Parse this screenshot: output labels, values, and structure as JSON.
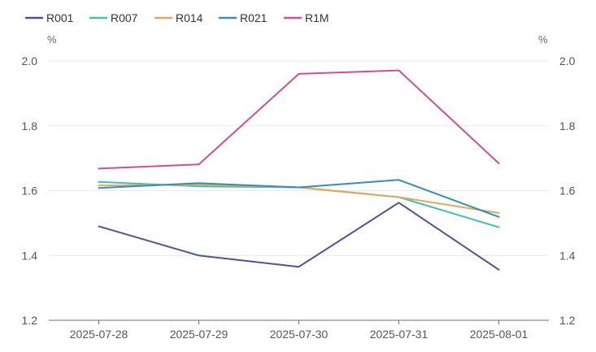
{
  "chart_data": {
    "type": "line",
    "categories": [
      "2025-07-28",
      "2025-07-29",
      "2025-07-30",
      "2025-07-31",
      "2025-08-01"
    ],
    "series": [
      {
        "name": "R001",
        "color": "#4a5591",
        "values": [
          1.49,
          1.4,
          1.365,
          1.563,
          1.356
        ]
      },
      {
        "name": "R007",
        "color": "#3fbfb6",
        "values": [
          1.627,
          1.613,
          1.61,
          1.58,
          1.487
        ]
      },
      {
        "name": "R014",
        "color": "#e0a860",
        "values": [
          1.616,
          1.618,
          1.61,
          1.58,
          1.531
        ]
      },
      {
        "name": "R021",
        "color": "#3a8bb5",
        "values": [
          1.608,
          1.623,
          1.61,
          1.633,
          1.519
        ]
      },
      {
        "name": "R1M",
        "color": "#cc4f9e",
        "values": [
          1.668,
          1.681,
          1.96,
          1.971,
          1.684
        ]
      }
    ],
    "left_axis": {
      "unit": "%",
      "ticks": [
        "2.0",
        "1.8",
        "1.6",
        "1.4",
        "1.2"
      ]
    },
    "right_axis": {
      "unit": "%",
      "ticks": [
        "2.0",
        "1.8",
        "1.6",
        "1.4",
        "1.2"
      ]
    },
    "ylim": [
      1.2,
      2.0
    ],
    "grid": true,
    "legend_position": "top-left",
    "title": "",
    "xlabel": "",
    "ylabel": "%"
  }
}
